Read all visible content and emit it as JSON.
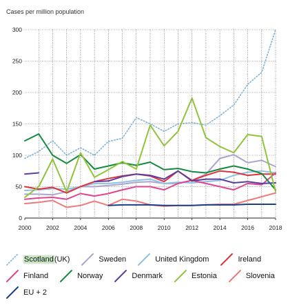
{
  "chart_data": {
    "type": "line",
    "title": "",
    "ylabel": "Cases per million population",
    "xlabel": "",
    "xlim": [
      2000,
      2018
    ],
    "ylim": [
      0,
      300
    ],
    "x_ticks": [
      "2000",
      "2002",
      "2004",
      "2006",
      "2008",
      "2010",
      "2012",
      "2014",
      "2016",
      "2018"
    ],
    "y_ticks": [
      "0",
      "50",
      "100",
      "150",
      "200",
      "250",
      "300"
    ],
    "grid": true,
    "legend_position": "bottom",
    "series": [
      {
        "name": "Scotland (UK)",
        "color": "#7fb3d9",
        "dotted": true,
        "x": [
          2000,
          2001,
          2002,
          2003,
          2004,
          2005,
          2006,
          2007,
          2008,
          2009,
          2010,
          2011,
          2012,
          2013,
          2014,
          2015,
          2016,
          2017,
          2018
        ],
        "values": [
          95,
          106,
          123,
          100,
          112,
          100,
          122,
          127,
          160,
          150,
          138,
          150,
          152,
          148,
          163,
          180,
          213,
          232,
          300
        ]
      },
      {
        "name": "Sweden",
        "color": "#a9a5cf",
        "x": [
          2000,
          2001,
          2002,
          2003,
          2004,
          2005,
          2006,
          2007,
          2008,
          2009,
          2010,
          2011,
          2012,
          2013,
          2014,
          2015,
          2016,
          2017,
          2018
        ],
        "values": [
          38,
          38,
          37,
          42,
          50,
          50,
          52,
          54,
          57,
          58,
          55,
          55,
          60,
          70,
          95,
          101,
          88,
          92,
          82
        ]
      },
      {
        "name": "United Kingdom",
        "color": "#8ec1e0",
        "x": [
          2000,
          2001,
          2002,
          2003,
          2004,
          2005,
          2006,
          2007,
          2008,
          2009,
          2010,
          2011,
          2012,
          2013,
          2014,
          2015,
          2016,
          2017,
          2018
        ],
        "values": [
          44,
          45,
          47,
          46,
          50,
          55,
          55,
          57,
          60,
          62,
          55,
          57,
          56,
          58,
          60,
          68,
          73,
          75,
          72
        ]
      },
      {
        "name": "Ireland",
        "color": "#e0313a",
        "x": [
          2000,
          2001,
          2002,
          2003,
          2004,
          2005,
          2006,
          2007,
          2008,
          2009,
          2010,
          2011,
          2012,
          2013,
          2014,
          2015,
          2016,
          2017,
          2018
        ],
        "values": [
          50,
          46,
          49,
          40,
          50,
          58,
          63,
          67,
          70,
          67,
          58,
          75,
          60,
          68,
          75,
          73,
          68,
          70,
          70
        ]
      },
      {
        "name": "Finland",
        "color": "#e0448e",
        "x": [
          2000,
          2001,
          2002,
          2003,
          2004,
          2005,
          2006,
          2007,
          2008,
          2009,
          2010,
          2011,
          2012,
          2013,
          2014,
          2015,
          2016,
          2017,
          2018
        ],
        "values": [
          30,
          32,
          33,
          30,
          39,
          35,
          39,
          45,
          50,
          50,
          45,
          55,
          60,
          55,
          50,
          45,
          55,
          53,
          72
        ]
      },
      {
        "name": "Norway",
        "color": "#138a3c",
        "x": [
          2000,
          2001,
          2002,
          2003,
          2004,
          2005,
          2006,
          2007,
          2008,
          2009,
          2010,
          2011,
          2012,
          2013,
          2014,
          2015,
          2016,
          2017,
          2018
        ],
        "values": [
          123,
          134,
          100,
          87,
          101,
          78,
          83,
          88,
          84,
          89,
          77,
          79,
          74,
          72,
          78,
          83,
          78,
          71,
          45
        ]
      },
      {
        "name": "Denmark",
        "color": "#5c3e9e",
        "x": [
          2000,
          2001,
          2002,
          2003,
          2004,
          2005,
          2006,
          2007,
          2008,
          2009,
          2010,
          2011,
          2012,
          2013,
          2014,
          2015,
          2016,
          2017,
          2018
        ],
        "values": [
          70,
          72,
          null,
          null,
          null,
          58,
          59,
          66,
          70,
          68,
          62,
          75,
          59,
          62,
          62,
          56,
          58,
          55,
          56
        ]
      },
      {
        "name": "Estonia",
        "color": "#8fc43a",
        "x": [
          2000,
          2001,
          2002,
          2003,
          2004,
          2005,
          2006,
          2007,
          2008,
          2009,
          2010,
          2011,
          2012,
          2013,
          2014,
          2015,
          2016,
          2017,
          2018
        ],
        "values": [
          33,
          50,
          94,
          42,
          104,
          65,
          77,
          90,
          78,
          148,
          115,
          138,
          191,
          128,
          114,
          104,
          133,
          130,
          42
        ]
      },
      {
        "name": "Slovenia",
        "color": "#ee7a7a",
        "x": [
          2000,
          2001,
          2002,
          2003,
          2004,
          2005,
          2006,
          2007,
          2008,
          2009,
          2010,
          2011,
          2012,
          2013,
          2014,
          2015,
          2016,
          2017,
          2018
        ],
        "values": [
          23,
          25,
          28,
          17,
          20,
          27,
          20,
          30,
          27,
          21,
          19,
          20,
          20,
          21,
          22,
          22,
          28,
          34,
          40
        ]
      },
      {
        "name": "EU + 2",
        "color": "#1b3f86",
        "x": [
          2006,
          2007,
          2008,
          2009,
          2010,
          2011,
          2012,
          2013,
          2014,
          2015,
          2016,
          2017,
          2018
        ],
        "values": [
          20,
          21,
          21,
          21,
          20,
          20,
          20,
          21,
          21,
          21,
          22,
          22,
          22
        ]
      }
    ]
  },
  "legend": {
    "rows": [
      [
        {
          "name": "Scotland (UK)",
          "label_main": "Scotland",
          "label_suffix": " (UK)",
          "icon": "dotted-line-icon",
          "color": "#7fb3d9"
        },
        {
          "name": "Sweden",
          "icon": "line-icon",
          "color": "#a9a5cf"
        },
        {
          "name": "United Kingdom",
          "icon": "line-icon",
          "color": "#8ec1e0"
        },
        {
          "name": "Ireland",
          "icon": "line-icon",
          "color": "#e0313a"
        }
      ],
      [
        {
          "name": "Finland",
          "icon": "line-icon",
          "color": "#e0448e"
        },
        {
          "name": "Norway",
          "icon": "line-icon",
          "color": "#138a3c"
        },
        {
          "name": "Denmark",
          "icon": "line-icon",
          "color": "#5c3e9e"
        },
        {
          "name": "Estonia",
          "icon": "line-icon",
          "color": "#8fc43a"
        },
        {
          "name": "Slovenia",
          "icon": "line-icon",
          "color": "#ee7a7a"
        }
      ],
      [
        {
          "name": "EU + 2",
          "icon": "line-icon",
          "color": "#1b3f86"
        }
      ]
    ]
  }
}
